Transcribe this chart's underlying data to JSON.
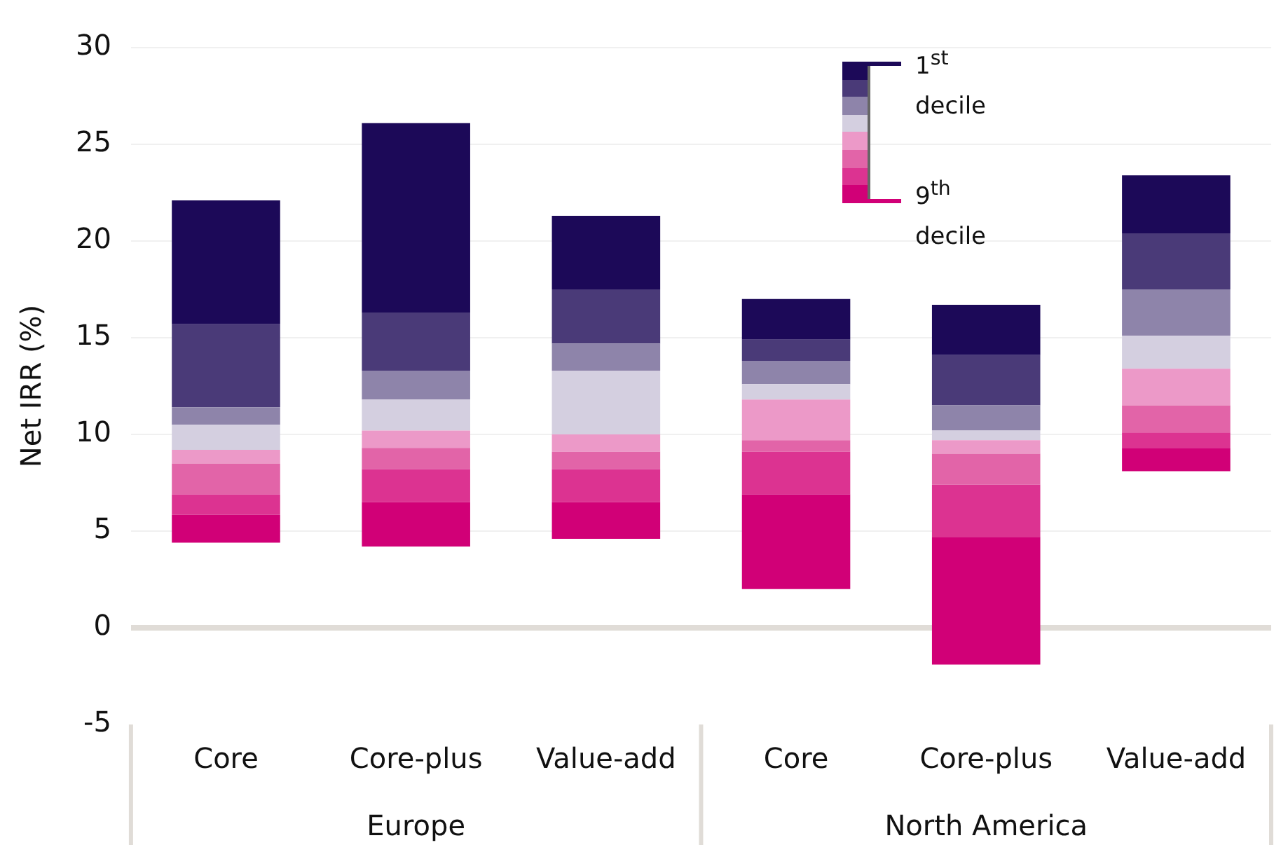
{
  "chart_data": {
    "type": "bar",
    "ylabel": "Net IRR (%)",
    "categories": [
      "Core",
      "Core-plus",
      "Value-add",
      "Core",
      "Core-plus",
      "Value-add"
    ],
    "series": [
      {
        "color": "#d10077",
        "base": [
          4.4,
          4.2,
          4.6,
          2.0,
          -1.9,
          8.1
        ],
        "values": [
          1.45,
          2.3,
          1.9,
          4.9,
          6.6,
          1.2
        ]
      },
      {
        "color": "#dc3391",
        "base": [
          5.85,
          6.5,
          6.5,
          6.9,
          4.7,
          9.3
        ],
        "values": [
          1.05,
          1.7,
          1.7,
          2.2,
          2.7,
          0.8
        ]
      },
      {
        "color": "#e264a8",
        "base": [
          6.9,
          8.2,
          8.2,
          9.1,
          7.4,
          10.1
        ],
        "values": [
          1.6,
          1.1,
          0.9,
          0.6,
          1.6,
          1.4
        ]
      },
      {
        "color": "#ec99c8",
        "base": [
          8.5,
          9.3,
          9.1,
          9.7,
          9.0,
          11.5
        ],
        "values": [
          0.7,
          0.9,
          0.9,
          2.1,
          0.7,
          1.9
        ]
      },
      {
        "color": "#d4cfe0",
        "base": [
          9.2,
          10.2,
          10.0,
          11.8,
          9.7,
          13.4
        ],
        "values": [
          1.3,
          1.6,
          3.3,
          0.8,
          0.5,
          1.7
        ]
      },
      {
        "color": "#8e84aa",
        "base": [
          10.5,
          11.8,
          13.3,
          12.6,
          10.2,
          15.1
        ],
        "values": [
          0.9,
          1.5,
          1.4,
          1.2,
          1.3,
          2.4
        ]
      },
      {
        "color": "#4a3a78",
        "base": [
          11.4,
          13.3,
          14.7,
          13.8,
          11.5,
          17.5
        ],
        "values": [
          4.3,
          3.0,
          2.8,
          1.1,
          2.6,
          2.9
        ]
      },
      {
        "color": "#1c0958",
        "base": [
          15.7,
          16.3,
          17.5,
          14.9,
          14.1,
          20.4
        ],
        "values": [
          6.4,
          9.8,
          3.8,
          2.1,
          2.6,
          3.0
        ]
      }
    ],
    "ylim": [
      -5,
      30
    ],
    "yticks": [
      -5,
      0,
      5,
      10,
      15,
      20,
      25,
      30
    ],
    "grid": "y",
    "annotations": [
      "1$^{st}$ decile",
      "9$^{th}$ decile",
      "Europe",
      "North America"
    ]
  }
}
